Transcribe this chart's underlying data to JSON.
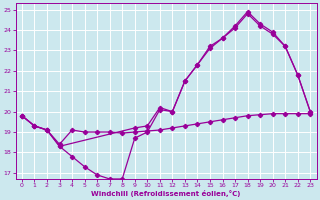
{
  "xlabel": "Windchill (Refroidissement éolien,°C)",
  "background_color": "#cce8ee",
  "grid_color": "#ffffff",
  "line_color": "#990099",
  "xlim": [
    -0.5,
    23.5
  ],
  "ylim": [
    16.7,
    25.3
  ],
  "xticks": [
    0,
    1,
    2,
    3,
    4,
    5,
    6,
    7,
    8,
    9,
    10,
    11,
    12,
    13,
    14,
    15,
    16,
    17,
    18,
    19,
    20,
    21,
    22,
    23
  ],
  "yticks": [
    17,
    18,
    19,
    20,
    21,
    22,
    23,
    24,
    25
  ],
  "curve1_x": [
    0,
    1,
    2,
    3,
    4,
    5,
    6,
    7,
    8,
    9,
    10,
    11,
    12,
    13,
    14,
    15,
    16,
    17,
    18,
    19,
    20,
    21,
    22,
    23
  ],
  "curve1_y": [
    19.8,
    19.3,
    19.1,
    18.4,
    19.1,
    19.0,
    19.0,
    19.0,
    18.95,
    19.0,
    19.05,
    19.1,
    19.2,
    19.3,
    19.4,
    19.5,
    19.6,
    19.7,
    19.8,
    19.85,
    19.9,
    19.9,
    19.9,
    19.9
  ],
  "curve2_x": [
    0,
    1,
    2,
    3,
    4,
    5,
    6,
    7,
    8,
    9,
    10,
    11,
    12,
    13,
    14,
    15,
    16,
    17,
    18,
    19,
    20,
    21,
    22,
    23
  ],
  "curve2_y": [
    19.8,
    19.3,
    19.1,
    18.3,
    17.8,
    17.3,
    16.9,
    16.7,
    16.7,
    18.7,
    19.0,
    20.1,
    20.0,
    21.5,
    22.3,
    23.1,
    23.6,
    24.1,
    24.8,
    24.2,
    23.8,
    23.2,
    21.8,
    20.0
  ],
  "curve3_x": [
    0,
    1,
    2,
    3,
    9,
    10,
    11,
    12,
    13,
    14,
    15,
    16,
    17,
    18,
    19,
    20,
    21,
    22,
    23
  ],
  "curve3_y": [
    19.8,
    19.3,
    19.1,
    18.3,
    19.2,
    19.3,
    20.2,
    20.0,
    21.5,
    22.3,
    23.2,
    23.6,
    24.2,
    24.9,
    24.3,
    23.9,
    23.2,
    21.8,
    20.0
  ]
}
